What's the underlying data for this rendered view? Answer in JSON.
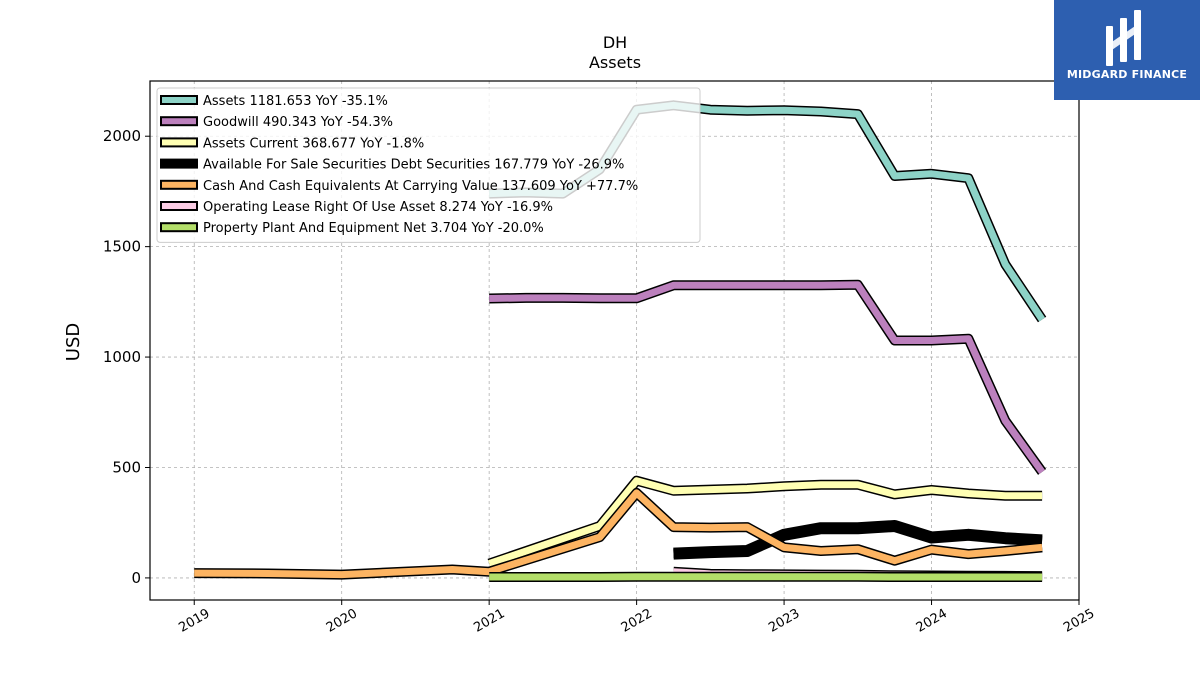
{
  "chart_data": {
    "type": "line",
    "title": "DH",
    "subtitle": "Assets",
    "ylabel": "USD",
    "xlabel": "",
    "xlim": [
      2018.7,
      2025.0
    ],
    "ylim": [
      -100,
      2250
    ],
    "x_ticks": [
      "2019",
      "2020",
      "2021",
      "2022",
      "2023",
      "2024",
      "2025"
    ],
    "y_ticks": [
      "0",
      "500",
      "1000",
      "1500",
      "2000"
    ],
    "grid": true,
    "legend_position": "top-left",
    "series": [
      {
        "name": "Assets  1181.653 YoY -35.1%",
        "color": "#8dd3c7",
        "width": 7,
        "points": [
          [
            2021.0,
            1740
          ],
          [
            2021.25,
            1745
          ],
          [
            2021.5,
            1740
          ],
          [
            2021.75,
            1850
          ],
          [
            2022.0,
            2120
          ],
          [
            2022.25,
            2140
          ],
          [
            2022.5,
            2120
          ],
          [
            2022.75,
            2115
          ],
          [
            2023.0,
            2118
          ],
          [
            2023.25,
            2112
          ],
          [
            2023.5,
            2100
          ],
          [
            2023.75,
            1820
          ],
          [
            2024.0,
            1830
          ],
          [
            2024.25,
            1810
          ],
          [
            2024.5,
            1420
          ],
          [
            2024.75,
            1170
          ]
        ]
      },
      {
        "name": "Goodwill  490.343 YoY -54.3%",
        "color": "#bc80bd",
        "width": 7,
        "points": [
          [
            2021.0,
            1265
          ],
          [
            2021.25,
            1268
          ],
          [
            2021.5,
            1268
          ],
          [
            2021.75,
            1266
          ],
          [
            2022.0,
            1266
          ],
          [
            2022.25,
            1325
          ],
          [
            2022.5,
            1325
          ],
          [
            2022.75,
            1325
          ],
          [
            2023.0,
            1325
          ],
          [
            2023.25,
            1325
          ],
          [
            2023.5,
            1327
          ],
          [
            2023.75,
            1075
          ],
          [
            2024.0,
            1075
          ],
          [
            2024.25,
            1083
          ],
          [
            2024.5,
            712
          ],
          [
            2024.75,
            480
          ]
        ]
      },
      {
        "name": "Assets Current  368.677 YoY -1.8%",
        "color": "#ffffb3",
        "width": 7,
        "points": [
          [
            2021.0,
            65
          ],
          [
            2021.75,
            235
          ],
          [
            2022.0,
            440
          ],
          [
            2022.25,
            395
          ],
          [
            2022.5,
            400
          ],
          [
            2022.75,
            405
          ],
          [
            2023.0,
            415
          ],
          [
            2023.25,
            422
          ],
          [
            2023.5,
            422
          ],
          [
            2023.75,
            378
          ],
          [
            2024.0,
            398
          ],
          [
            2024.25,
            382
          ],
          [
            2024.5,
            372
          ],
          [
            2024.75,
            372
          ]
        ]
      },
      {
        "name": "Available For Sale Securities Debt Securities  167.779 YoY -26.9%",
        "color": "#000000",
        "width": 9,
        "points": [
          [
            2022.25,
            110
          ],
          [
            2022.5,
            117
          ],
          [
            2022.75,
            122
          ],
          [
            2023.0,
            195
          ],
          [
            2023.25,
            225
          ],
          [
            2023.5,
            225
          ],
          [
            2023.75,
            235
          ],
          [
            2024.0,
            183
          ],
          [
            2024.25,
            195
          ],
          [
            2024.5,
            180
          ],
          [
            2024.75,
            170
          ]
        ]
      },
      {
        "name": "Cash And Cash Equivalents At Carrying Value  137.609 YoY +77.7%",
        "color": "#fdb462",
        "width": 7,
        "points": [
          [
            2019.0,
            22
          ],
          [
            2019.5,
            20
          ],
          [
            2020.0,
            15
          ],
          [
            2020.75,
            38
          ],
          [
            2021.0,
            28
          ],
          [
            2021.75,
            185
          ],
          [
            2022.0,
            385
          ],
          [
            2022.25,
            230
          ],
          [
            2022.5,
            228
          ],
          [
            2022.75,
            230
          ],
          [
            2023.0,
            138
          ],
          [
            2023.25,
            122
          ],
          [
            2023.5,
            130
          ],
          [
            2023.75,
            78
          ],
          [
            2024.0,
            128
          ],
          [
            2024.25,
            108
          ],
          [
            2024.5,
            122
          ],
          [
            2024.75,
            138
          ]
        ]
      },
      {
        "name": "Operating Lease Right Of Use Asset  8.274 YoY -16.9%",
        "color": "#fccde5",
        "width": 7,
        "points": [
          [
            2022.25,
            28
          ],
          [
            2022.5,
            18
          ],
          [
            2022.75,
            17
          ],
          [
            2023.0,
            16
          ],
          [
            2023.25,
            15
          ],
          [
            2023.5,
            14
          ],
          [
            2023.75,
            12
          ],
          [
            2024.0,
            11
          ],
          [
            2024.25,
            10
          ],
          [
            2024.5,
            9
          ],
          [
            2024.75,
            8
          ]
        ]
      },
      {
        "name": "Property Plant And Equipment Net  3.704 YoY -20.0%",
        "color": "#b3de69",
        "width": 7,
        "points": [
          [
            2021.0,
            4
          ],
          [
            2021.75,
            4
          ],
          [
            2022.0,
            5
          ],
          [
            2022.25,
            5
          ],
          [
            2022.5,
            5
          ],
          [
            2022.75,
            5
          ],
          [
            2023.0,
            5
          ],
          [
            2023.25,
            5
          ],
          [
            2023.5,
            5
          ],
          [
            2023.75,
            4
          ],
          [
            2024.0,
            4
          ],
          [
            2024.25,
            4
          ],
          [
            2024.5,
            4
          ],
          [
            2024.75,
            4
          ]
        ]
      }
    ]
  },
  "logo": {
    "text": "MIDGARD FINANCE",
    "background": "#2d5fb0"
  }
}
